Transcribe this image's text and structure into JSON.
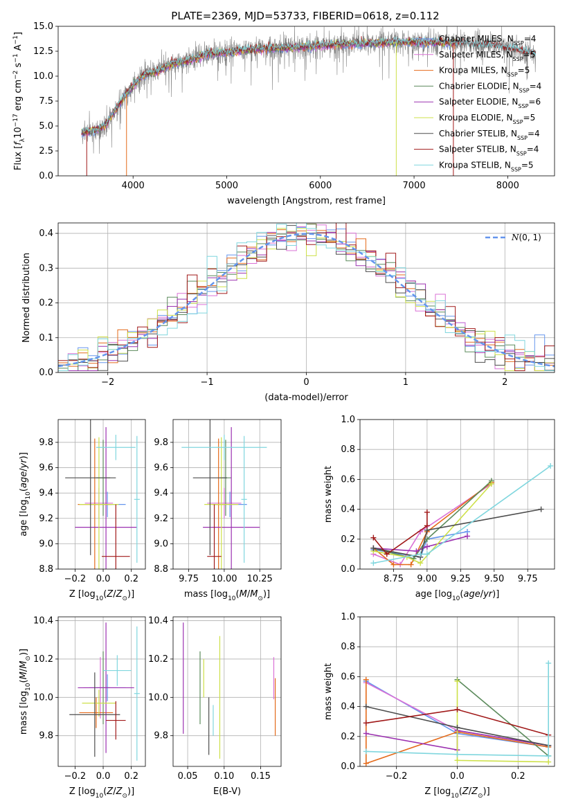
{
  "figure": {
    "title": "PLATE=2369, MJD=53733, FIBERID=0618, z=0.112"
  },
  "colors": {
    "chabrier_miles": "#6495ED",
    "salpeter_miles": "#DA70D6",
    "kroupa_miles": "#E46A1A",
    "chabrier_elodie": "#5B8A5B",
    "salpeter_elodie": "#9B30B0",
    "kroupa_elodie": "#CDE048",
    "chabrier_stelib": "#4D4D4D",
    "salpeter_stelib": "#A01818",
    "kroupa_stelib": "#7FD6DE",
    "data": "#808080",
    "normal": "#6495ED"
  },
  "models": [
    {
      "key": "chabrier_miles",
      "label": "Chabrier MILES, N",
      "sub": "SSP",
      "n": "=4"
    },
    {
      "key": "salpeter_miles",
      "label": "Salpeter MILES, N",
      "sub": "SSP",
      "n": "=5"
    },
    {
      "key": "kroupa_miles",
      "label": "Kroupa MILES, N",
      "sub": "SSP",
      "n": "=5"
    },
    {
      "key": "chabrier_elodie",
      "label": "Chabrier ELODIE, N",
      "sub": "SSP",
      "n": "=4"
    },
    {
      "key": "salpeter_elodie",
      "label": "Salpeter ELODIE, N",
      "sub": "SSP",
      "n": "=6"
    },
    {
      "key": "kroupa_elodie",
      "label": "Kroupa ELODIE, N",
      "sub": "SSP",
      "n": "=5"
    },
    {
      "key": "chabrier_stelib",
      "label": "Chabrier STELIB, N",
      "sub": "SSP",
      "n": "=4"
    },
    {
      "key": "salpeter_stelib",
      "label": "Salpeter STELIB, N",
      "sub": "SSP",
      "n": "=4"
    },
    {
      "key": "kroupa_stelib",
      "label": "Kroupa STELIB, N",
      "sub": "SSP",
      "n": "=5"
    }
  ],
  "chart_data": [
    {
      "id": "spectrum",
      "type": "line",
      "title": "PLATE=2369, MJD=53733, FIBERID=0618, z=0.112",
      "xlabel": "wavelength [Angstrom, rest frame]",
      "ylabel": "Flux [f_λ 10^-17 erg cm^-2 s^-1 A^-1]",
      "xlim": [
        3200,
        8500
      ],
      "ylim": [
        0,
        15
      ],
      "xticks": [
        4000,
        5000,
        6000,
        7000,
        8000
      ],
      "yticks": [
        "0.0",
        "2.5",
        "5.0",
        "7.5",
        "10.0",
        "12.5",
        "15.0"
      ],
      "legend_position": "upper right",
      "continuum": [
        [
          3450,
          4.3
        ],
        [
          3600,
          4.6
        ],
        [
          3700,
          5.0
        ],
        [
          3800,
          6.5
        ],
        [
          3900,
          7.8
        ],
        [
          3950,
          8.5
        ],
        [
          4000,
          9.0
        ],
        [
          4100,
          10.0
        ],
        [
          4200,
          10.4
        ],
        [
          4300,
          10.6
        ],
        [
          4400,
          11.2
        ],
        [
          4600,
          11.6
        ],
        [
          4800,
          12.2
        ],
        [
          5000,
          12.4
        ],
        [
          5200,
          12.6
        ],
        [
          5500,
          12.8
        ],
        [
          5800,
          12.9
        ],
        [
          6000,
          13.1
        ],
        [
          6300,
          13.2
        ],
        [
          6600,
          13.3
        ],
        [
          6900,
          13.4
        ],
        [
          7200,
          13.4
        ],
        [
          7500,
          13.3
        ],
        [
          7800,
          13.1
        ],
        [
          8000,
          12.8
        ],
        [
          8300,
          12.2
        ]
      ],
      "data_xrange": [
        3450,
        8300
      ],
      "model_xrange": [
        3450,
        7450
      ]
    },
    {
      "id": "residuals",
      "type": "histogram",
      "xlabel": "(data-model)/error",
      "ylabel": "Normed distribution",
      "xlim": [
        -2.5,
        2.5
      ],
      "ylim": [
        0,
        0.43
      ],
      "xticks": [
        "−2",
        "−1",
        "0",
        "1",
        "2"
      ],
      "yticks": [
        "0.0",
        "0.1",
        "0.2",
        "0.3",
        "0.4"
      ],
      "bin_width": 0.1,
      "legend": "N(0, 1)",
      "legend_position": "upper right",
      "reference_curve": "normal(0,1)"
    },
    {
      "id": "age_vs_Z",
      "type": "errorbar",
      "xlabel": "Z [log10(Z/Z⊙)]",
      "ylabel": "age [log10(age/yr)]",
      "xlim": [
        -0.32,
        0.3
      ],
      "ylim": [
        8.8,
        9.98
      ],
      "xticks": [
        "−0.2",
        "0.0",
        "0.2"
      ],
      "yticks": [
        "8.8",
        "9.0",
        "9.2",
        "9.4",
        "9.6",
        "9.8"
      ],
      "points": [
        {
          "model": "chabrier_miles",
          "x": 0.03,
          "xerr": 0.13,
          "y": 9.31,
          "yerr": 0.1
        },
        {
          "model": "salpeter_miles",
          "x": -0.03,
          "xerr": 0.1,
          "y": 9.32,
          "yerr": 0.12
        },
        {
          "model": "kroupa_miles",
          "x": -0.06,
          "xerr": 0.12,
          "y": 9.31,
          "yerr": 0.52
        },
        {
          "model": "chabrier_elodie",
          "x": 0.0,
          "xerr": 0.05,
          "y": 9.52,
          "yerr": 0.3
        },
        {
          "model": "salpeter_elodie",
          "x": 0.02,
          "xerr": 0.22,
          "y": 9.13,
          "yerr": 0.79
        },
        {
          "model": "kroupa_elodie",
          "x": -0.03,
          "xerr": 0.14,
          "y": 9.31,
          "yerr": 0.53
        },
        {
          "model": "chabrier_stelib",
          "x": -0.09,
          "xerr": 0.18,
          "y": 9.52,
          "yerr": 0.61
        },
        {
          "model": "salpeter_stelib",
          "x": 0.09,
          "xerr": 0.1,
          "y": 8.9,
          "yerr": 0.41
        },
        {
          "model": "kroupa_stelib",
          "x": 0.09,
          "xerr": 0.14,
          "y": 9.76,
          "yerr": 0.1
        },
        {
          "model": "kroupa_stelib",
          "x": 0.24,
          "xerr": 0.02,
          "y": 9.35,
          "yerr": 0.5
        }
      ]
    },
    {
      "id": "age_vs_mass",
      "type": "errorbar",
      "xlabel": "mass [log10(M/M⊙)]",
      "ylabel": "",
      "xlim": [
        9.64,
        10.4
      ],
      "ylim": [
        8.8,
        9.98
      ],
      "xticks": [
        "9.75",
        "10.00",
        "10.25"
      ],
      "yticks": [
        "8.8",
        "9.0",
        "9.2",
        "9.4",
        "9.6",
        "9.8"
      ],
      "points": [
        {
          "model": "chabrier_miles",
          "x": 10.04,
          "xerr": 0.12,
          "y": 9.31,
          "yerr": 0.1
        },
        {
          "model": "salpeter_miles",
          "x": 10.0,
          "xerr": 0.12,
          "y": 9.32,
          "yerr": 0.12
        },
        {
          "model": "kroupa_miles",
          "x": 9.96,
          "xerr": 0.05,
          "y": 9.31,
          "yerr": 0.52
        },
        {
          "model": "chabrier_elodie",
          "x": 10.01,
          "xerr": 0.04,
          "y": 9.52,
          "yerr": 0.3
        },
        {
          "model": "salpeter_elodie",
          "x": 10.05,
          "xerr": 0.2,
          "y": 9.13,
          "yerr": 0.79
        },
        {
          "model": "kroupa_elodie",
          "x": 9.98,
          "xerr": 0.12,
          "y": 9.31,
          "yerr": 0.53
        },
        {
          "model": "chabrier_stelib",
          "x": 9.9,
          "xerr": 0.12,
          "y": 9.52,
          "yerr": 0.61
        },
        {
          "model": "salpeter_stelib",
          "x": 9.93,
          "xerr": 0.05,
          "y": 8.9,
          "yerr": 0.41
        },
        {
          "model": "kroupa_stelib",
          "x": 10.0,
          "xerr": 0.3,
          "y": 9.76,
          "yerr": 0.1
        },
        {
          "model": "kroupa_stelib",
          "x": 10.14,
          "xerr": 0.02,
          "y": 9.35,
          "yerr": 0.5
        }
      ]
    },
    {
      "id": "weight_vs_age",
      "type": "line",
      "xlabel": "age [log10(age/yr)]",
      "ylabel": "mass weight",
      "xlim": [
        8.5,
        9.95
      ],
      "ylim": [
        0,
        1
      ],
      "xticks": [
        "8.75",
        "9.00",
        "9.25",
        "9.50",
        "9.75"
      ],
      "yticks": [
        "0.0",
        "0.2",
        "0.4",
        "0.6",
        "0.8",
        "1.0"
      ],
      "series": [
        {
          "model": "chabrier_miles",
          "x": [
            8.6,
            8.95,
            9.0,
            9.3
          ],
          "y": [
            0.13,
            0.08,
            0.2,
            0.25
          ]
        },
        {
          "model": "salpeter_miles",
          "x": [
            8.6,
            8.8,
            8.95,
            9.48
          ],
          "y": [
            0.1,
            0.03,
            0.25,
            0.57
          ]
        },
        {
          "model": "kroupa_miles",
          "x": [
            8.6,
            8.75,
            8.88,
            9.0,
            9.48
          ],
          "y": [
            0.14,
            0.03,
            0.03,
            0.25,
            0.58
          ]
        },
        {
          "model": "chabrier_elodie",
          "x": [
            8.6,
            8.9,
            9.0,
            9.48
          ],
          "y": [
            0.14,
            0.07,
            0.2,
            0.59
          ]
        },
        {
          "model": "salpeter_elodie",
          "x": [
            8.6,
            8.92,
            9.0,
            9.3
          ],
          "y": [
            0.14,
            0.12,
            0.15,
            0.22
          ]
        },
        {
          "model": "kroupa_elodie",
          "x": [
            8.6,
            8.85,
            8.95,
            9.48
          ],
          "y": [
            0.12,
            0.08,
            0.04,
            0.57
          ]
        },
        {
          "model": "chabrier_stelib",
          "x": [
            8.6,
            8.95,
            9.0,
            9.85
          ],
          "y": [
            0.14,
            0.08,
            0.26,
            0.4
          ]
        },
        {
          "model": "salpeter_stelib",
          "x": [
            8.6,
            8.7,
            9.0,
            9.0
          ],
          "y": [
            0.21,
            0.1,
            0.29,
            0.38
          ]
        },
        {
          "model": "kroupa_stelib",
          "x": [
            8.6,
            8.95,
            9.0,
            9.92
          ],
          "y": [
            0.04,
            0.1,
            0.1,
            0.69
          ]
        }
      ]
    },
    {
      "id": "mass_vs_Z",
      "type": "errorbar",
      "xlabel": "Z [log10(Z/Z⊙)]",
      "ylabel": "mass [log10(M/M⊙)]",
      "xlim": [
        -0.32,
        0.3
      ],
      "ylim": [
        9.64,
        10.42
      ],
      "xticks": [
        "−0.2",
        "0.0",
        "0.2"
      ],
      "yticks": [
        "9.8",
        "10.0",
        "10.2",
        "10.4"
      ],
      "points": [
        {
          "model": "chabrier_miles",
          "x": 0.03,
          "xerr": 0.13,
          "y": 10.05,
          "yerr": 0.07
        },
        {
          "model": "salpeter_miles",
          "x": -0.02,
          "xerr": 0.12,
          "y": 10.05,
          "yerr": 0.16
        },
        {
          "model": "kroupa_miles",
          "x": -0.05,
          "xerr": 0.12,
          "y": 9.92,
          "yerr": 0.08
        },
        {
          "model": "chabrier_elodie",
          "x": 0.0,
          "xerr": 0.05,
          "y": 10.05,
          "yerr": 0.19
        },
        {
          "model": "salpeter_elodie",
          "x": 0.02,
          "xerr": 0.2,
          "y": 10.05,
          "yerr": 0.34
        },
        {
          "model": "kroupa_elodie",
          "x": -0.03,
          "xerr": 0.12,
          "y": 9.97,
          "yerr": 0.07
        },
        {
          "model": "chabrier_stelib",
          "x": -0.06,
          "xerr": 0.18,
          "y": 9.91,
          "yerr": 0.22
        },
        {
          "model": "salpeter_stelib",
          "x": 0.09,
          "xerr": 0.07,
          "y": 9.88,
          "yerr": 0.1
        },
        {
          "model": "kroupa_stelib",
          "x": 0.1,
          "xerr": 0.1,
          "y": 10.14,
          "yerr": 0.08
        },
        {
          "model": "kroupa_stelib",
          "x": 0.24,
          "xerr": 0.02,
          "y": 10.02,
          "yerr": 0.35
        }
      ]
    },
    {
      "id": "mass_vs_ebv",
      "type": "errorbar",
      "xlabel": "E(B-V)",
      "ylabel": "",
      "xlim": [
        0.03,
        0.178
      ],
      "ylim": [
        9.64,
        10.42
      ],
      "xticks": [
        "0.05",
        "0.10",
        "0.15"
      ],
      "yticks": [
        "9.8",
        "10.0",
        "10.2",
        "10.4"
      ],
      "points": [
        {
          "model": "salpeter_elodie",
          "x": 0.044,
          "y": 10.1,
          "yerr": 0.29
        },
        {
          "model": "chabrier_elodie",
          "x": 0.067,
          "y": 10.05,
          "yerr": 0.19
        },
        {
          "model": "kroupa_elodie",
          "x": 0.072,
          "y": 10.1,
          "yerr": 0.1
        },
        {
          "model": "chabrier_stelib",
          "x": 0.079,
          "y": 9.85,
          "yerr": 0.15
        },
        {
          "model": "kroupa_stelib",
          "x": 0.085,
          "y": 9.88,
          "yerr": 0.08
        },
        {
          "model": "kroupa_elodie",
          "x": 0.094,
          "y": 10.0,
          "yerr": 0.32
        },
        {
          "model": "salpeter_miles",
          "x": 0.168,
          "y": 10.1,
          "yerr": 0.11
        },
        {
          "model": "kroupa_miles",
          "x": 0.17,
          "y": 9.95,
          "yerr": 0.15
        }
      ]
    },
    {
      "id": "weight_vs_Z",
      "type": "line",
      "xlabel": "Z [log10(Z/Z⊙)]",
      "ylabel": "mass weight",
      "xlim": [
        -0.32,
        0.32
      ],
      "ylim": [
        0,
        1
      ],
      "xticks": [
        "−0.2",
        "0.0",
        "0.2"
      ],
      "yticks": [
        "0.0",
        "0.2",
        "0.4",
        "0.6",
        "0.8",
        "1.0"
      ],
      "series": [
        {
          "model": "chabrier_miles",
          "x": [
            -0.3,
            0.0,
            0.3
          ],
          "y": [
            0.57,
            0.22,
            0.13
          ]
        },
        {
          "model": "salpeter_miles",
          "x": [
            -0.3,
            0.0,
            0.3
          ],
          "y": [
            0.56,
            0.24,
            0.14
          ]
        },
        {
          "model": "kroupa_miles",
          "x": [
            -0.3,
            -0.3,
            0.0,
            0.3
          ],
          "y": [
            0.58,
            0.02,
            0.23,
            0.13
          ]
        },
        {
          "model": "chabrier_elodie",
          "x": [
            0.0,
            0.3
          ],
          "y": [
            0.58,
            0.07
          ]
        },
        {
          "model": "salpeter_elodie",
          "x": [
            -0.3,
            0.0,
            0.0,
            0.3
          ],
          "y": [
            0.22,
            0.11,
            0.24,
            0.14
          ]
        },
        {
          "model": "kroupa_elodie",
          "x": [
            0.0,
            0.0,
            0.3
          ],
          "y": [
            0.57,
            0.04,
            0.03
          ]
        },
        {
          "model": "chabrier_stelib",
          "x": [
            -0.3,
            0.0,
            0.3
          ],
          "y": [
            0.4,
            0.26,
            0.14
          ]
        },
        {
          "model": "salpeter_stelib",
          "x": [
            -0.3,
            0.0,
            0.3
          ],
          "y": [
            0.29,
            0.38,
            0.21
          ]
        },
        {
          "model": "kroupa_stelib",
          "x": [
            -0.3,
            0.0,
            0.3,
            0.3
          ],
          "y": [
            0.1,
            0.08,
            0.07,
            0.69
          ]
        }
      ]
    }
  ]
}
